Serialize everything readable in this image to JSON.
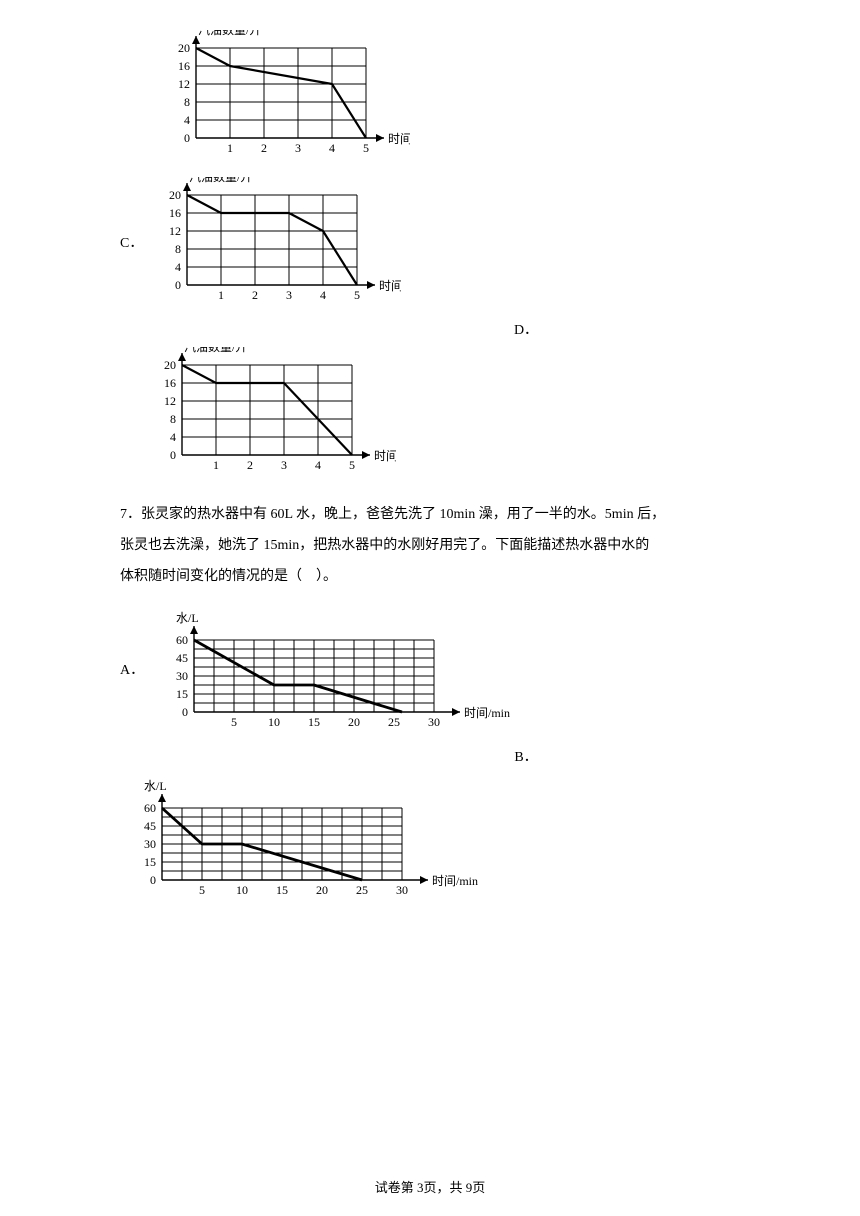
{
  "charts_gas": {
    "ylabel": "汽油数量/升",
    "xlabel": "时间/天",
    "yticks": [
      "0",
      "4",
      "8",
      "12",
      "16",
      "20"
    ],
    "xticks": [
      "1",
      "2",
      "3",
      "4",
      "5"
    ],
    "ystep": 18,
    "xstep": 34,
    "grid_color": "#000000",
    "bg": "#ffffff",
    "line_width": 2.2,
    "top": {
      "points": [
        [
          0,
          20
        ],
        [
          1,
          16
        ],
        [
          4,
          12
        ],
        [
          5,
          0
        ]
      ]
    },
    "c": {
      "points": [
        [
          0,
          20
        ],
        [
          1,
          16
        ],
        [
          3,
          16
        ],
        [
          4,
          12
        ],
        [
          5,
          0
        ]
      ]
    },
    "d": {
      "points": [
        [
          0,
          20
        ],
        [
          1,
          16
        ],
        [
          3,
          16
        ],
        [
          5,
          0
        ]
      ]
    }
  },
  "charts_water": {
    "ylabel": "水/L",
    "xlabel": "时间/min",
    "yticks": [
      "0",
      "15",
      "30",
      "45",
      "60"
    ],
    "xticks": [
      "5",
      "10",
      "15",
      "20",
      "25",
      "30"
    ],
    "ystep": 18,
    "xstep": 40,
    "grid_color": "#000000",
    "bg": "#ffffff",
    "line_width": 2.8,
    "xdiv": 12,
    "a": {
      "points": [
        [
          0,
          60
        ],
        [
          10,
          22.5
        ],
        [
          15,
          22.5
        ],
        [
          26,
          0
        ]
      ]
    },
    "b": {
      "points": [
        [
          0,
          60
        ],
        [
          5,
          30
        ],
        [
          10,
          30
        ],
        [
          25,
          0
        ]
      ]
    }
  },
  "labels": {
    "C": "C．",
    "D": "D．",
    "A": "A．",
    "B": "B．"
  },
  "question7": {
    "num": "7．",
    "line1": "张灵家的热水器中有 60L 水，晚上，爸爸先洗了 10min 澡，用了一半的水。5min 后，",
    "line2": "张灵也去洗澡，她洗了 15min，把热水器中的水刚好用完了。下面能描述热水器中水的",
    "line3": "体积随时间变化的情况的是（　）。"
  },
  "footer": "试卷第 3页，共 9页"
}
